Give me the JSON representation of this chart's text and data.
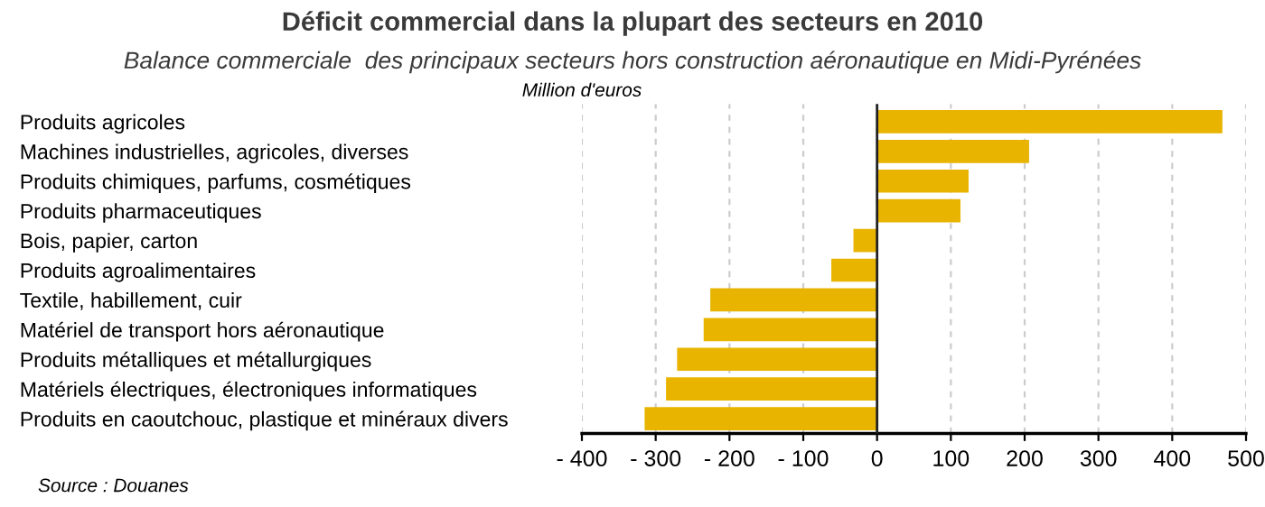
{
  "chart_data": {
    "type": "bar",
    "orientation": "horizontal",
    "title": "Déficit commercial dans la plupart des secteurs en 2010",
    "subtitle": "Balance commerciale  des principaux secteurs hors construction aéronautique en Midi-Pyrénées",
    "categories": [
      "Produits agricoles",
      "Machines industrielles, agricoles, diverses",
      "Produits chimiques, parfums, cosmétiques",
      "Produits pharmaceutiques",
      "Bois, papier, carton",
      "Produits agroalimentaires",
      "Textile, habillement, cuir",
      "Matériel de transport hors aéronautique",
      "Produits métalliques et métallurgiques",
      "Matériels électriques, électroniques informatiques",
      "Produits en caoutchouc, plastique et minéraux divers"
    ],
    "values": [
      468,
      206,
      124,
      113,
      -32,
      -62,
      -226,
      -235,
      -271,
      -286,
      -315
    ],
    "color": "#e8b400",
    "xlim": [
      -400,
      500
    ],
    "xticks": [
      {
        "value": -400,
        "label": "- 400"
      },
      {
        "value": -300,
        "label": "- 300"
      },
      {
        "value": -200,
        "label": "- 200"
      },
      {
        "value": -100,
        "label": "- 100"
      },
      0,
      100,
      200,
      300,
      400,
      500
    ],
    "grid": "x",
    "legend": false,
    "annotations": [
      "Million d'euros",
      "Source : Douanes"
    ]
  }
}
